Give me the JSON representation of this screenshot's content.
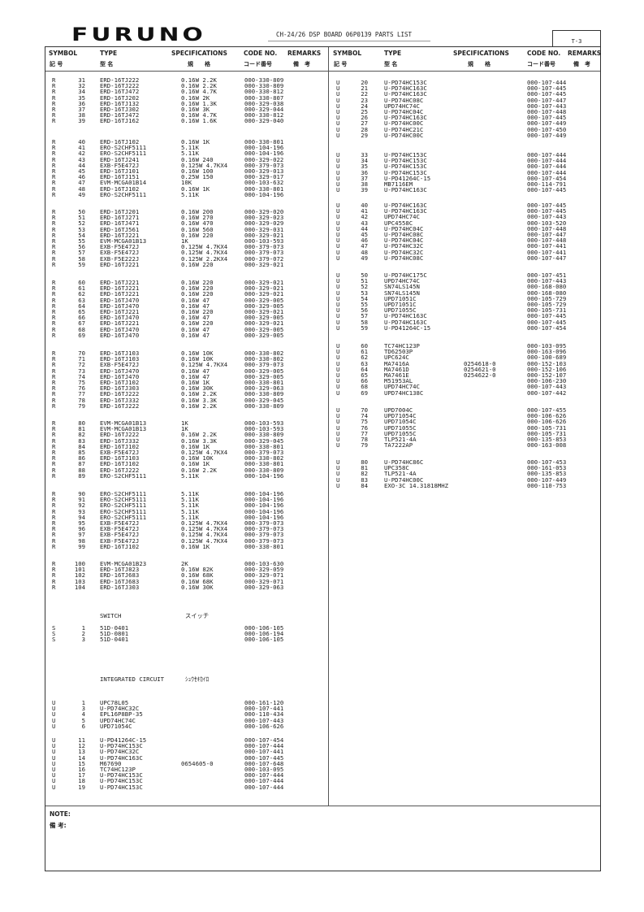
{
  "header": {
    "logo": "FURUNO",
    "title": "CH-24/26 DSP BOARD 06P0139 PARTS LIST",
    "page": "T-3"
  },
  "columns": {
    "symbol": "SYMBOL",
    "symbol_jp": "記 号",
    "type": "TYPE",
    "type_jp": "型 名",
    "spec": "SPECIFICATIONS",
    "spec_jp": "規　　格",
    "code": "CODE NO.",
    "code_jp": "コード番号",
    "remarks": "REMARKS",
    "remarks_jp": "備　考"
  },
  "left": {
    "groups": [
      [
        [
          "R",
          "31",
          "ERD-16TJ222",
          "0.16W 2.2K",
          "000-330-809"
        ],
        [
          "R",
          "32",
          "ERD-16TJ222",
          "0.16W 2.2K",
          "000-330-809"
        ],
        [
          "R",
          "34",
          "ERD-16TJ472",
          "0.16W 4.7K",
          "000-330-812"
        ],
        [
          "R",
          "35",
          "ERD-16TJ202",
          "0.16W 2K",
          "000-330-807"
        ],
        [
          "R",
          "36",
          "ERD-16TJ132",
          "0.16W 1.3K",
          "000-329-038"
        ],
        [
          "R",
          "37",
          "ERD-16TJ302",
          "0.16W 3K",
          "000-329-044"
        ],
        [
          "R",
          "38",
          "ERD-16TJ472",
          "0.16W 4.7K",
          "000-330-812"
        ],
        [
          "R",
          "39",
          "ERD-16TJ162",
          "0.16W 1.6K",
          "000-329-040"
        ]
      ],
      [
        [
          "R",
          "40",
          "ERD-16TJ102",
          "0.16W 1K",
          "000-330-801"
        ],
        [
          "R",
          "41",
          "ERO-S2CHF5111",
          "5.11K",
          "000-104-196"
        ],
        [
          "R",
          "42",
          "ERO-S2CHF5111",
          "5.11K",
          "000-104-196"
        ],
        [
          "R",
          "43",
          "ERD-16TJ241",
          "0.16W 240",
          "000-329-022"
        ],
        [
          "R",
          "44",
          "EXB-F5E472J",
          "0.125W 4.7KX4",
          "000-379-073"
        ],
        [
          "R",
          "45",
          "ERD-16TJ101",
          "0.16W 100",
          "000-329-013"
        ],
        [
          "R",
          "46",
          "ERD-16TJ151",
          "0.25W 150",
          "000-329-017"
        ],
        [
          "R",
          "47",
          "EVM-MCGA01B14",
          "10K",
          "000-103-632"
        ],
        [
          "R",
          "48",
          "ERD-16TJ102",
          "0.16W 1K",
          "000-330-801"
        ],
        [
          "R",
          "49",
          "ERO-S2CHF5111",
          "5.11K",
          "000-104-196"
        ]
      ],
      [
        [
          "R",
          "50",
          "ERD-16TJ201",
          "0.16W 200",
          "000-329-020"
        ],
        [
          "R",
          "51",
          "ERD-16TJ271",
          "0.16W 270",
          "000-329-023"
        ],
        [
          "R",
          "52",
          "ERD-16TJ471",
          "0.16W 470",
          "000-329-029"
        ],
        [
          "R",
          "53",
          "ERD-16TJ561",
          "0.16W 560",
          "000-329-031"
        ],
        [
          "R",
          "54",
          "ERD-16TJ221",
          "0.16W 220",
          "000-329-021"
        ],
        [
          "R",
          "55",
          "EVM-MCGA01B13",
          "1K",
          "000-103-593"
        ],
        [
          "R",
          "56",
          "EXB-F5E472J",
          "0.125W 4.7KX4",
          "000-379-073"
        ],
        [
          "R",
          "57",
          "EXB-F5E472J",
          "0.125W 4.7KX4",
          "000-379-073"
        ],
        [
          "R",
          "58",
          "EXB-F5E222J",
          "0.125W 2.2KX4",
          "000-379-072"
        ],
        [
          "R",
          "59",
          "ERD-16TJ221",
          "0.16W 220",
          "000-329-021"
        ]
      ],
      [
        [
          "R",
          "60",
          "ERD-16TJ221",
          "0.16W 220",
          "000-329-021"
        ],
        [
          "R",
          "61",
          "ERD-16TJ221",
          "0.16W 220",
          "000-329-021"
        ],
        [
          "R",
          "62",
          "ERD-16TJ221",
          "0.16W 220",
          "000-329-021"
        ],
        [
          "R",
          "63",
          "ERD-16TJ470",
          "0.16W 47",
          "000-329-005"
        ],
        [
          "R",
          "64",
          "ERD-16TJ470",
          "0.16W 47",
          "000-329-005"
        ],
        [
          "R",
          "65",
          "ERD-16TJ221",
          "0.16W 220",
          "000-329-021"
        ],
        [
          "R",
          "66",
          "ERD-16TJ470",
          "0.16W 47",
          "000-329-005"
        ],
        [
          "R",
          "67",
          "ERD-16TJ221",
          "0.16W 220",
          "000-329-021"
        ],
        [
          "R",
          "68",
          "ERD-16TJ470",
          "0.16W 47",
          "000-329-005"
        ],
        [
          "R",
          "69",
          "ERD-16TJ470",
          "0.16W 47",
          "000-329-005"
        ]
      ],
      [
        [
          "R",
          "70",
          "ERD-16TJ103",
          "0.16W 10K",
          "000-330-802"
        ],
        [
          "R",
          "71",
          "ERD-16TJ103",
          "0.16W 10K",
          "000-330-802"
        ],
        [
          "R",
          "72",
          "EXB-F5E472J",
          "0.125W 4.7KX4",
          "000-379-073"
        ],
        [
          "R",
          "73",
          "ERD-16TJ470",
          "0.16W 47",
          "000-329-005"
        ],
        [
          "R",
          "74",
          "ERD-16TJ470",
          "0.16W 47",
          "000-329-005"
        ],
        [
          "R",
          "75",
          "ERD-16TJ102",
          "0.16W 1K",
          "000-330-801"
        ],
        [
          "R",
          "76",
          "ERD-16TJ303",
          "0.16W 30K",
          "000-329-063"
        ],
        [
          "R",
          "77",
          "ERD-16TJ222",
          "0.16W 2.2K",
          "000-330-809"
        ],
        [
          "R",
          "78",
          "ERD-16TJ332",
          "0.16W 3.3K",
          "000-329-045"
        ],
        [
          "R",
          "79",
          "ERD-16TJ222",
          "0.16W 2.2K",
          "000-330-809"
        ]
      ],
      [
        [
          "R",
          "80",
          "EVM-MCGA01B13",
          "1K",
          "000-103-593"
        ],
        [
          "R",
          "81",
          "EVM-MCGA01B13",
          "1K",
          "000-103-593"
        ],
        [
          "R",
          "82",
          "ERD-16TJ222",
          "0.16W 2.2K",
          "000-330-809"
        ],
        [
          "R",
          "83",
          "ERD-16TJ332",
          "0.16W 3.3K",
          "000-329-045"
        ],
        [
          "R",
          "84",
          "ERD-16TJ102",
          "0.16W 1K",
          "000-330-801"
        ],
        [
          "R",
          "85",
          "EXB-F5E472J",
          "0.125W 4.7KX4",
          "000-379-073"
        ],
        [
          "R",
          "86",
          "ERD-16TJ103",
          "0.16W 10K",
          "000-330-802"
        ],
        [
          "R",
          "87",
          "ERD-16TJ102",
          "0.16W 1K",
          "000-330-801"
        ],
        [
          "R",
          "88",
          "ERD-16TJ222",
          "0.16W 2.2K",
          "000-330-809"
        ],
        [
          "R",
          "89",
          "ERO-S2CHF5111",
          "5.11K",
          "000-104-196"
        ]
      ],
      [
        [
          "R",
          "90",
          "ERO-S2CHF5111",
          "5.11K",
          "000-104-196"
        ],
        [
          "R",
          "91",
          "ERO-S2CHF5111",
          "5.11K",
          "000-104-196"
        ],
        [
          "R",
          "92",
          "ERO-S2CHF5111",
          "5.11K",
          "000-104-196"
        ],
        [
          "R",
          "93",
          "ERO-S2CHF5111",
          "5.11K",
          "000-104-196"
        ],
        [
          "R",
          "94",
          "ERO-S2CHF5111",
          "5.11K",
          "000-104-196"
        ],
        [
          "R",
          "95",
          "EXB-F5E472J",
          "0.125W 4.7KX4",
          "000-379-073"
        ],
        [
          "R",
          "96",
          "EXB-F5E472J",
          "0.125W 4.7KX4",
          "000-379-073"
        ],
        [
          "R",
          "97",
          "EXB-F5E472J",
          "0.125W 4.7KX4",
          "000-379-073"
        ],
        [
          "R",
          "98",
          "EXB-F5E472J",
          "0.125W 4.7KX4",
          "000-379-073"
        ],
        [
          "R",
          "99",
          "ERD-16TJ102",
          "0.16W 1K",
          "000-330-801"
        ]
      ],
      [
        [
          "R",
          "100",
          "EVM-MCGA01B23",
          "2K",
          "000-103-630"
        ],
        [
          "R",
          "101",
          "ERD-16TJ823",
          "0.16W 82K",
          "000-329-059"
        ],
        [
          "R",
          "102",
          "ERD-16TJ683",
          "0.16W 68K",
          "000-329-071"
        ],
        [
          "R",
          "103",
          "ERD-16TJ683",
          "0.16W 68K",
          "000-329-071"
        ],
        [
          "R",
          "104",
          "ERD-16TJ303",
          "0.16W 30K",
          "000-329-063"
        ]
      ],
      [
        [
          "S",
          "1",
          "51D-0401",
          "",
          "000-106-105"
        ],
        [
          "S",
          "2",
          "51D-0801",
          "",
          "000-106-194"
        ],
        [
          "S",
          "3",
          "51D-0401",
          "",
          "000-106-105"
        ]
      ],
      [
        [
          "U",
          "1",
          "UPC78L05",
          "",
          "000-161-120"
        ],
        [
          "U",
          "3",
          "U-PD74HC32C",
          "",
          "000-107-441"
        ],
        [
          "U",
          "4",
          "EPL16P8BP-35",
          "",
          "000-110-434"
        ],
        [
          "U",
          "5",
          "UPD74HC74C",
          "",
          "000-107-443"
        ],
        [
          "U",
          "6",
          "UPD71054C",
          "",
          "000-106-626"
        ]
      ],
      [
        [
          "U",
          "11",
          "U-PD41264C-15",
          "",
          "000-107-454"
        ],
        [
          "U",
          "12",
          "U-PD74HC153C",
          "",
          "000-107-444"
        ],
        [
          "U",
          "13",
          "U-PD74HC32C",
          "",
          "000-107-441"
        ],
        [
          "U",
          "14",
          "U-PD74HC163C",
          "",
          "000-107-445"
        ],
        [
          "U",
          "15",
          "M67690",
          "0654605-0",
          "000-107-648"
        ],
        [
          "U",
          "16",
          "TC74HC123P",
          "",
          "000-103-095"
        ],
        [
          "U",
          "17",
          "U-PD74HC153C",
          "",
          "000-107-444"
        ],
        [
          "U",
          "18",
          "U-PD74HC153C",
          "",
          "000-107-444"
        ],
        [
          "U",
          "19",
          "U-PD74HC153C",
          "",
          "000-107-444"
        ]
      ]
    ],
    "sections": [
      {
        "en": "SWITCH",
        "jp": "スイッチ"
      },
      {
        "en": "INTEGRATED CIRCUIT",
        "jp": "ｼｭｳｾｷｶｲﾛ"
      }
    ]
  },
  "right": {
    "groups": [
      [
        [
          "U",
          "20",
          "U-PD74HC153C",
          "",
          "000-107-444"
        ],
        [
          "U",
          "21",
          "U-PD74HC163C",
          "",
          "000-107-445"
        ],
        [
          "U",
          "22",
          "U-PD74HC163C",
          "",
          "000-107-445"
        ],
        [
          "U",
          "23",
          "U-PD74HC08C",
          "",
          "000-107-447"
        ],
        [
          "U",
          "24",
          "UPD74HC74C",
          "",
          "000-107-443"
        ],
        [
          "U",
          "25",
          "U-PD74HC04C",
          "",
          "000-107-448"
        ],
        [
          "U",
          "26",
          "U-PD74HC163C",
          "",
          "000-107-445"
        ],
        [
          "U",
          "27",
          "U-PD74HC00C",
          "",
          "000-107-449"
        ],
        [
          "U",
          "28",
          "U-PD74HC21C",
          "",
          "000-107-450"
        ],
        [
          "U",
          "29",
          "U-PD74HC00C",
          "",
          "000-107-449"
        ]
      ],
      [
        [
          "U",
          "33",
          "U-PD74HC153C",
          "",
          "000-107-444"
        ],
        [
          "U",
          "34",
          "U-PD74HC153C",
          "",
          "000-107-444"
        ],
        [
          "U",
          "35",
          "U-PD74HC153C",
          "",
          "000-107-444"
        ],
        [
          "U",
          "36",
          "U-PD74HC153C",
          "",
          "000-107-444"
        ],
        [
          "U",
          "37",
          "U-PD41264C-15",
          "",
          "000-107-454"
        ],
        [
          "U",
          "38",
          "MB7116EM",
          "",
          "000-114-791"
        ],
        [
          "U",
          "39",
          "U-PD74HC163C",
          "",
          "000-107-445"
        ]
      ],
      [
        [
          "U",
          "40",
          "U-PD74HC163C",
          "",
          "000-107-445"
        ],
        [
          "U",
          "41",
          "U-PD74HC163C",
          "",
          "000-107-445"
        ],
        [
          "U",
          "42",
          "UPD74HC74C",
          "",
          "000-107-443"
        ],
        [
          "U",
          "43",
          "UPC4558C",
          "",
          "000-103-520"
        ],
        [
          "U",
          "44",
          "U-PD74HC04C",
          "",
          "000-107-448"
        ],
        [
          "U",
          "45",
          "U-PD74HC08C",
          "",
          "000-107-447"
        ],
        [
          "U",
          "46",
          "U-PD74HC04C",
          "",
          "000-107-448"
        ],
        [
          "U",
          "47",
          "U-PD74HC32C",
          "",
          "000-107-441"
        ],
        [
          "U",
          "48",
          "U-PD74HC32C",
          "",
          "000-107-441"
        ],
        [
          "U",
          "49",
          "U-PD74HC08C",
          "",
          "000-107-447"
        ]
      ],
      [
        [
          "U",
          "50",
          "U-PD74HC175C",
          "",
          "000-107-451"
        ],
        [
          "U",
          "51",
          "UPD74HC74C",
          "",
          "000-107-443"
        ],
        [
          "U",
          "52",
          "SN74LS145N",
          "",
          "000-168-080"
        ],
        [
          "U",
          "53",
          "SN74LS145N",
          "",
          "000-168-080"
        ],
        [
          "U",
          "54",
          "UPD71051C",
          "",
          "000-105-729"
        ],
        [
          "U",
          "55",
          "UPD71051C",
          "",
          "000-105-729"
        ],
        [
          "U",
          "56",
          "UPD71055C",
          "",
          "000-105-731"
        ],
        [
          "U",
          "57",
          "U-PD74HC163C",
          "",
          "000-107-445"
        ],
        [
          "U",
          "58",
          "U-PD74HC163C",
          "",
          "000-107-445"
        ],
        [
          "U",
          "59",
          "U-PD41264C-15",
          "",
          "000-107-454"
        ]
      ],
      [
        [
          "U",
          "60",
          "TC74HC123P",
          "",
          "000-103-095"
        ],
        [
          "U",
          "61",
          "TD62503P",
          "",
          "000-163-096"
        ],
        [
          "U",
          "62",
          "UPC624C",
          "",
          "000-100-689"
        ],
        [
          "U",
          "63",
          "MA7416A",
          "0254618-0",
          "000-152-103"
        ],
        [
          "U",
          "64",
          "MA7461D",
          "0254621-0",
          "000-152-106"
        ],
        [
          "U",
          "65",
          "MA7461E",
          "0254622-0",
          "000-152-107"
        ],
        [
          "U",
          "66",
          "M51953AL",
          "",
          "000-106-230"
        ],
        [
          "U",
          "68",
          "UPD74HC74C",
          "",
          "000-107-443"
        ],
        [
          "U",
          "69",
          "UPD74HC138C",
          "",
          "000-107-442"
        ]
      ],
      [
        [
          "U",
          "70",
          "UPD7004C",
          "",
          "000-107-455"
        ],
        [
          "U",
          "74",
          "UPD71054C",
          "",
          "000-106-626"
        ],
        [
          "U",
          "75",
          "UPD71054C",
          "",
          "000-106-626"
        ],
        [
          "U",
          "76",
          "UPD71055C",
          "",
          "000-105-731"
        ],
        [
          "U",
          "77",
          "UPD71055C",
          "",
          "000-105-731"
        ],
        [
          "U",
          "78",
          "TLP521-4A",
          "",
          "000-135-853"
        ],
        [
          "U",
          "79",
          "TA7222AP",
          "",
          "000-163-008"
        ]
      ],
      [
        [
          "U",
          "80",
          "U-PD74HC86C",
          "",
          "000-107-453"
        ],
        [
          "U",
          "81",
          "UPC358C",
          "",
          "000-161-053"
        ],
        [
          "U",
          "82",
          "TLP521-4A",
          "",
          "000-135-853"
        ],
        [
          "U",
          "83",
          "U-PD74HC00C",
          "",
          "000-107-449"
        ],
        [
          "U",
          "84",
          "EXO-3C 14.31818MHZ",
          "",
          "000-110-753"
        ]
      ]
    ]
  },
  "notes": {
    "en": "NOTE:",
    "jp": "備 考:"
  }
}
